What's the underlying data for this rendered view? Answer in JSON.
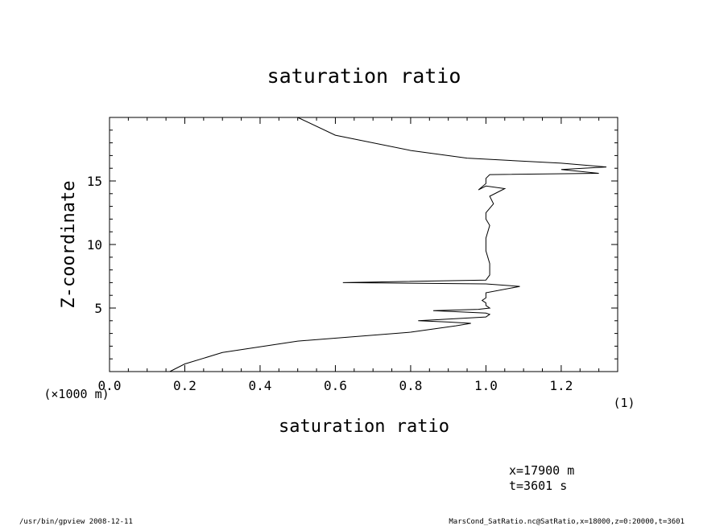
{
  "chart_data": {
    "type": "line",
    "title": "saturation ratio",
    "xlabel": "saturation ratio",
    "ylabel": "Z-coordinate",
    "x_unit_note": "(1)",
    "y_unit_note": "(×1000 m)",
    "xlim": [
      0.0,
      1.35
    ],
    "ylim": [
      0,
      20
    ],
    "x_ticks": [
      0.0,
      0.2,
      0.4,
      0.6,
      0.8,
      1.0,
      1.2
    ],
    "x_tick_labels": [
      "0.0",
      "0.2",
      "0.4",
      "0.6",
      "0.8",
      "1.0",
      "1.2"
    ],
    "y_ticks": [
      5,
      10,
      15
    ],
    "y_tick_labels": [
      "5",
      "10",
      "15"
    ],
    "grid": false,
    "series": [
      {
        "x": [
          0.16,
          0.2,
          0.3,
          0.5,
          0.8,
          0.92,
          0.96,
          0.9,
          0.82,
          0.88,
          1.0,
          1.01,
          1.0,
          0.86,
          0.98,
          1.01,
          1.0,
          1.0,
          0.99,
          1.0,
          1.0,
          1.09,
          1.0,
          0.62,
          1.0,
          1.01,
          1.01,
          1.0,
          1.0,
          1.01,
          1.0,
          1.0,
          1.02,
          1.01,
          1.05,
          1.0,
          0.98,
          1.0,
          1.0,
          1.01,
          1.3,
          1.2,
          1.32,
          1.2,
          0.95,
          0.8,
          0.6,
          0.5
        ],
        "y": [
          0,
          0.6,
          1.5,
          2.4,
          3.1,
          3.6,
          3.8,
          3.9,
          4.0,
          4.1,
          4.3,
          4.5,
          4.6,
          4.8,
          4.9,
          5.0,
          5.2,
          5.4,
          5.6,
          5.8,
          6.2,
          6.7,
          6.9,
          7.0,
          7.2,
          7.6,
          8.5,
          9.5,
          10.5,
          11.5,
          12.0,
          12.5,
          13.2,
          13.8,
          14.4,
          14.6,
          14.3,
          14.8,
          15.2,
          15.5,
          15.6,
          15.9,
          16.1,
          16.4,
          16.8,
          17.4,
          18.6,
          20.0
        ]
      }
    ]
  },
  "footer": {
    "meta_x": "x=17900  m",
    "meta_t": "t=3601  s",
    "left": "/usr/bin/gpview  2008-12-11",
    "right": "MarsCond_SatRatio.nc@SatRatio,x=18000,z=0:20000,t=3601"
  }
}
